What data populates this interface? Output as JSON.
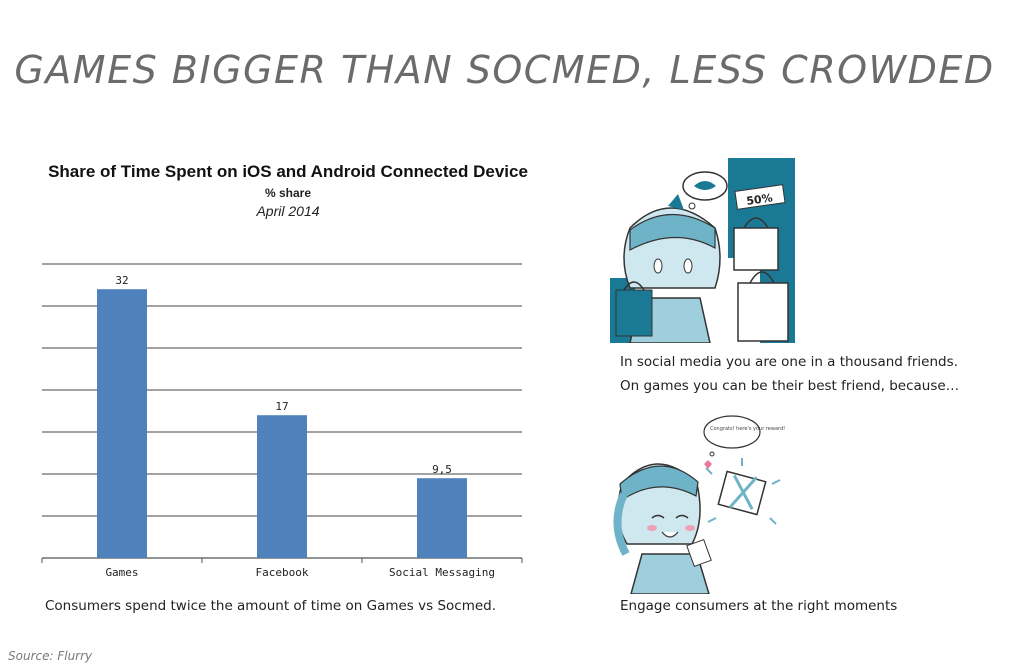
{
  "page": {
    "title": "GAMES BIGGER THAN SOCMED, LESS CROWDED",
    "caption_left": "Consumers spend twice the amount of time on Games vs Socmed.",
    "caption_right_1": "In social media you are one in a thousand friends.",
    "caption_right_2": "On games you can be their best friend, because…",
    "caption_right_3": "Engage consumers at the right moments",
    "source": "Source: Flurry",
    "illustration_top_text": "50%",
    "illustration_bottom_text": "Congrats! here's your reward!"
  },
  "chart_data": {
    "type": "bar",
    "title": "Share of Time Spent on iOS and Android Connected Device",
    "subtitle": "% share",
    "date_label": "April 2014",
    "categories": [
      "Games",
      "Facebook",
      "Social Messaging"
    ],
    "values": [
      32,
      17,
      9.5
    ],
    "value_labels": [
      "32",
      "17",
      "9,5"
    ],
    "ylim": [
      0,
      35
    ],
    "ytick_step": 5,
    "grid": true,
    "bar_color": "#4f81bd",
    "xlabel": "",
    "ylabel": ""
  }
}
